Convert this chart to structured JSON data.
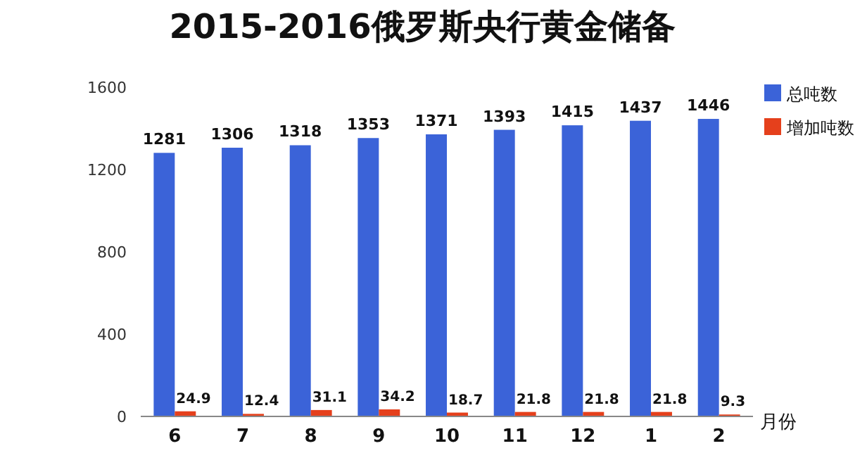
{
  "chart_data": {
    "type": "bar",
    "title": "2015-2016俄罗斯央行黄金储备",
    "xlabel": "月份",
    "categories": [
      "6",
      "7",
      "8",
      "9",
      "10",
      "11",
      "12",
      "1",
      "2"
    ],
    "series": [
      {
        "name": "总吨数",
        "color": "#3b63d8",
        "values": [
          1281,
          1306,
          1318,
          1353,
          1371,
          1393,
          1415,
          1437,
          1446
        ]
      },
      {
        "name": "增加吨数",
        "color": "#e5401c",
        "values": [
          24.9,
          12.4,
          31.1,
          34.2,
          18.7,
          21.8,
          21.8,
          21.8,
          9.3
        ]
      }
    ],
    "ylim": [
      0,
      1600
    ],
    "yticks": [
      0,
      400,
      800,
      1200,
      1600
    ],
    "grid": false,
    "legend": "right",
    "data_labels": true
  }
}
